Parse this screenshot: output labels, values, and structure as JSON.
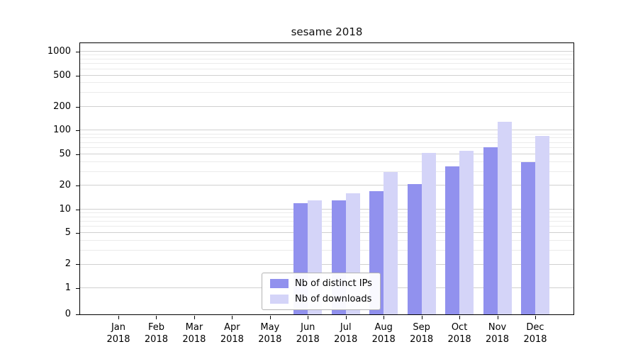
{
  "chart_data": {
    "type": "bar",
    "title": "sesame 2018",
    "year": "2018",
    "categories": [
      "Jan",
      "Feb",
      "Mar",
      "Apr",
      "May",
      "Jun",
      "Jul",
      "Aug",
      "Sep",
      "Oct",
      "Nov",
      "Dec"
    ],
    "series": [
      {
        "name": "Nb of distinct IPs",
        "color": "#9191ee",
        "values": [
          0,
          0,
          0,
          0,
          0,
          12,
          13,
          17,
          21,
          35,
          62,
          40
        ]
      },
      {
        "name": "Nb of downloads",
        "color": "#d4d4f8",
        "values": [
          0,
          0,
          0,
          0,
          0,
          13,
          16,
          30,
          52,
          55,
          130,
          85
        ]
      }
    ],
    "yticks": [
      0,
      1,
      2,
      5,
      10,
      20,
      50,
      100,
      200,
      500,
      1000
    ],
    "minor_yticks": [
      3,
      4,
      6,
      7,
      8,
      9,
      30,
      40,
      60,
      70,
      80,
      90,
      300,
      400,
      600,
      700,
      800,
      900
    ],
    "ylim": [
      0,
      1000
    ],
    "yscale": "symlog",
    "xlabel": "",
    "ylabel": "",
    "grid": true,
    "legend": {
      "position": "lower center"
    }
  },
  "colors": {
    "grid_major": "#d0d0d0",
    "grid_minor": "#ebebeb",
    "axis": "#000000",
    "background": "#ffffff"
  }
}
